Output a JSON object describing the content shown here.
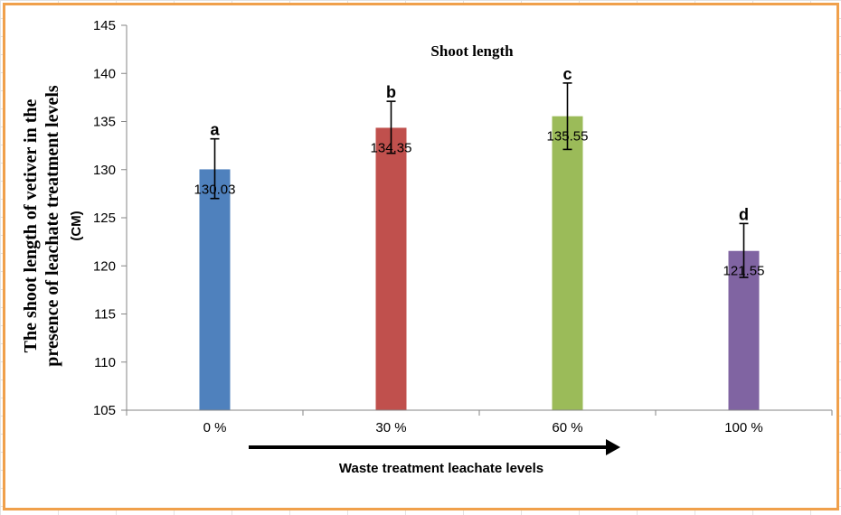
{
  "chart_data": {
    "type": "bar",
    "title": "Shoot length",
    "ylabel_lines": [
      "The shoot length of vetiver in the",
      "presence of leachate treatment levels",
      "(CM)"
    ],
    "xlabel": "Waste treatment leachate levels",
    "categories": [
      "0 %",
      "30 %",
      "60 %",
      "100 %"
    ],
    "values": [
      130.03,
      134.35,
      135.55,
      121.55
    ],
    "value_labels": [
      "130.03",
      "134.35",
      "135.55",
      "121.55"
    ],
    "error_low": [
      127.0,
      131.7,
      132.1,
      118.8
    ],
    "error_high": [
      133.2,
      137.1,
      139.0,
      124.4
    ],
    "significance_letters": [
      "a",
      "b",
      "c",
      "d"
    ],
    "bar_colors": [
      "#4f81bd",
      "#c0504d",
      "#9bbb59",
      "#8064a2"
    ],
    "ylim": [
      105,
      145
    ],
    "yticks": [
      "105",
      "110",
      "115",
      "120",
      "125",
      "130",
      "135",
      "140",
      "145"
    ],
    "ytick_values": [
      105,
      110,
      115,
      120,
      125,
      130,
      135,
      140,
      145
    ],
    "grid": false,
    "legend": "none",
    "has_arrow_under_x_axis": true
  },
  "colors": {
    "frame_border": "#f0a04b",
    "axis": "#868686",
    "arrow": "#000000"
  }
}
